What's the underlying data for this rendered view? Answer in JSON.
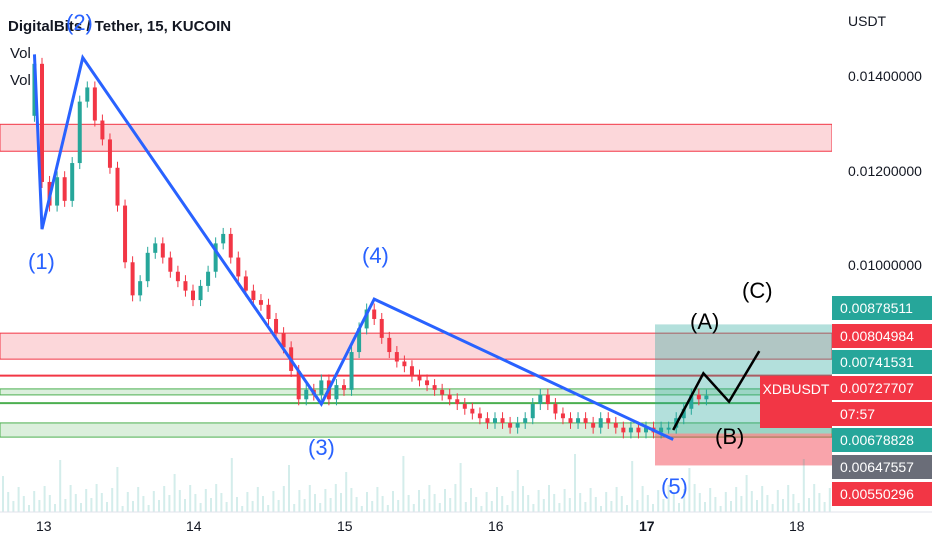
{
  "header": {
    "title": "DigitalBits / Tether, 15, KUCOIN",
    "vol_labels": [
      "Vol",
      "Vol"
    ]
  },
  "price_axis": {
    "currency": "USDT",
    "ticks": [
      "0.01400000",
      "0.01200000",
      "0.01000000"
    ]
  },
  "badges": [
    {
      "text": "0.00878511",
      "color": "#26a69a"
    },
    {
      "text": "0.00804984",
      "color": "#f23645"
    },
    {
      "text": "0.00741531",
      "color": "#26a69a"
    },
    {
      "text": "0.00727707",
      "color": "#f23645"
    },
    {
      "text": "0.00678828",
      "color": "#26a69a"
    },
    {
      "text": "0.00647557",
      "color": "#6a6d78"
    },
    {
      "text": "0.00550296",
      "color": "#f23645"
    }
  ],
  "symbol_badge": {
    "symbol": "XDBUSDT",
    "countdown": "07:57"
  },
  "time_axis": {
    "ticks": [
      "13",
      "14",
      "15",
      "16",
      "17",
      "18"
    ]
  },
  "wave_labels": {
    "impulse": [
      "(1)",
      "(2)",
      "(3)",
      "(4)",
      "(5)"
    ],
    "correction": [
      "(A)",
      "(B)",
      "(C)"
    ]
  },
  "chart_data": {
    "type": "candlestick",
    "x_ticks": [
      "13",
      "14",
      "15",
      "16",
      "17",
      "18"
    ],
    "y_ticks": [
      0.014,
      0.012,
      0.01
    ],
    "ylim": [
      0.0054,
      0.0153
    ],
    "key_prices": {
      "resistance_zone": [
        0.01245,
        0.01302
      ],
      "red_zone_low": [
        0.00804984,
        0.0086
      ],
      "red_line": 0.0077,
      "green_line_upper": 0.00741531,
      "green_line_lower": 0.00678828,
      "green_zone": [
        0.0064,
        0.0067
      ],
      "position_entry": 0.00647557,
      "position_target": 0.00878511,
      "position_stop": 0.00550296,
      "last_price": 0.00727707
    },
    "elliott_wave_path": [
      {
        "day": 12.95,
        "price": 0.0145
      },
      {
        "day": 13.0,
        "price": 0.0108,
        "label": "(1)"
      },
      {
        "day": 13.27,
        "price": 0.01443,
        "label": "(2)"
      },
      {
        "day": 14.85,
        "price": 0.0071,
        "label": "(3)"
      },
      {
        "day": 15.2,
        "price": 0.00932,
        "label": "(4)"
      },
      {
        "day": 17.18,
        "price": 0.00635,
        "label": "(5)"
      }
    ],
    "projection_path": [
      {
        "day": 17.18,
        "price": 0.00655
      },
      {
        "day": 17.38,
        "price": 0.00775,
        "label": "(A)"
      },
      {
        "day": 17.55,
        "price": 0.00715,
        "label": "(B)"
      },
      {
        "day": 17.75,
        "price": 0.00822,
        "label": "(C)"
      }
    ],
    "price_path": [
      {
        "day": 12.9,
        "price": 0.0132
      },
      {
        "day": 12.95,
        "price": 0.0143
      },
      {
        "day": 13.0,
        "price": 0.0118
      },
      {
        "day": 13.05,
        "price": 0.0113
      },
      {
        "day": 13.1,
        "price": 0.0119
      },
      {
        "day": 13.15,
        "price": 0.0114
      },
      {
        "day": 13.2,
        "price": 0.0122
      },
      {
        "day": 13.25,
        "price": 0.0135
      },
      {
        "day": 13.3,
        "price": 0.0138
      },
      {
        "day": 13.35,
        "price": 0.0131
      },
      {
        "day": 13.4,
        "price": 0.0127
      },
      {
        "day": 13.45,
        "price": 0.0121
      },
      {
        "day": 13.5,
        "price": 0.0113
      },
      {
        "day": 13.55,
        "price": 0.0101
      },
      {
        "day": 13.6,
        "price": 0.0094
      },
      {
        "day": 13.65,
        "price": 0.0097
      },
      {
        "day": 13.7,
        "price": 0.0103
      },
      {
        "day": 13.75,
        "price": 0.0105
      },
      {
        "day": 13.8,
        "price": 0.0102
      },
      {
        "day": 13.85,
        "price": 0.0099
      },
      {
        "day": 13.9,
        "price": 0.0097
      },
      {
        "day": 13.95,
        "price": 0.0095
      },
      {
        "day": 14.0,
        "price": 0.0093
      },
      {
        "day": 14.05,
        "price": 0.0096
      },
      {
        "day": 14.1,
        "price": 0.0099
      },
      {
        "day": 14.15,
        "price": 0.0105
      },
      {
        "day": 14.2,
        "price": 0.0107
      },
      {
        "day": 14.25,
        "price": 0.0102
      },
      {
        "day": 14.3,
        "price": 0.0098
      },
      {
        "day": 14.35,
        "price": 0.0095
      },
      {
        "day": 14.4,
        "price": 0.0093
      },
      {
        "day": 14.45,
        "price": 0.0092
      },
      {
        "day": 14.5,
        "price": 0.0089
      },
      {
        "day": 14.55,
        "price": 0.0086
      },
      {
        "day": 14.6,
        "price": 0.0083
      },
      {
        "day": 14.65,
        "price": 0.0078
      },
      {
        "day": 14.7,
        "price": 0.0072
      },
      {
        "day": 14.75,
        "price": 0.0074
      },
      {
        "day": 14.8,
        "price": 0.0073
      },
      {
        "day": 14.85,
        "price": 0.0076
      },
      {
        "day": 14.9,
        "price": 0.0072
      },
      {
        "day": 14.95,
        "price": 0.0075
      },
      {
        "day": 15.0,
        "price": 0.0074
      },
      {
        "day": 15.05,
        "price": 0.0082
      },
      {
        "day": 15.1,
        "price": 0.0087
      },
      {
        "day": 15.15,
        "price": 0.0091
      },
      {
        "day": 15.2,
        "price": 0.0089
      },
      {
        "day": 15.25,
        "price": 0.0085
      },
      {
        "day": 15.3,
        "price": 0.0082
      },
      {
        "day": 15.35,
        "price": 0.008
      },
      {
        "day": 15.4,
        "price": 0.0079
      },
      {
        "day": 15.45,
        "price": 0.0077
      },
      {
        "day": 15.5,
        "price": 0.0076
      },
      {
        "day": 15.55,
        "price": 0.0075
      },
      {
        "day": 15.6,
        "price": 0.0074
      },
      {
        "day": 15.65,
        "price": 0.0073
      },
      {
        "day": 15.7,
        "price": 0.0072
      },
      {
        "day": 15.75,
        "price": 0.0071
      },
      {
        "day": 15.8,
        "price": 0.007
      },
      {
        "day": 15.85,
        "price": 0.0069
      },
      {
        "day": 15.9,
        "price": 0.0068
      },
      {
        "day": 15.95,
        "price": 0.0067
      },
      {
        "day": 16.0,
        "price": 0.0068
      },
      {
        "day": 16.05,
        "price": 0.0067
      },
      {
        "day": 16.1,
        "price": 0.0066
      },
      {
        "day": 16.15,
        "price": 0.0067
      },
      {
        "day": 16.2,
        "price": 0.0068
      },
      {
        "day": 16.25,
        "price": 0.0071
      },
      {
        "day": 16.3,
        "price": 0.0073
      },
      {
        "day": 16.35,
        "price": 0.0071
      },
      {
        "day": 16.4,
        "price": 0.0069
      },
      {
        "day": 16.45,
        "price": 0.0068
      },
      {
        "day": 16.5,
        "price": 0.0067
      },
      {
        "day": 16.55,
        "price": 0.0068
      },
      {
        "day": 16.6,
        "price": 0.0067
      },
      {
        "day": 16.65,
        "price": 0.0066
      },
      {
        "day": 16.7,
        "price": 0.0068
      },
      {
        "day": 16.75,
        "price": 0.0067
      },
      {
        "day": 16.8,
        "price": 0.0066
      },
      {
        "day": 16.85,
        "price": 0.0065
      },
      {
        "day": 16.9,
        "price": 0.0066
      },
      {
        "day": 16.95,
        "price": 0.0065
      },
      {
        "day": 17.0,
        "price": 0.0066
      },
      {
        "day": 17.05,
        "price": 0.0065
      },
      {
        "day": 17.1,
        "price": 0.0066
      },
      {
        "day": 17.15,
        "price": 0.0066
      },
      {
        "day": 17.2,
        "price": 0.0068
      },
      {
        "day": 17.25,
        "price": 0.007
      },
      {
        "day": 17.3,
        "price": 0.0073
      },
      {
        "day": 17.35,
        "price": 0.0072
      },
      {
        "day": 17.4,
        "price": 0.00727707
      }
    ]
  },
  "colors": {
    "wave_blue": "#2962ff",
    "projection_black": "#000000",
    "red": "#f23645",
    "green": "#26a69a",
    "line_green": "#4caf50"
  }
}
